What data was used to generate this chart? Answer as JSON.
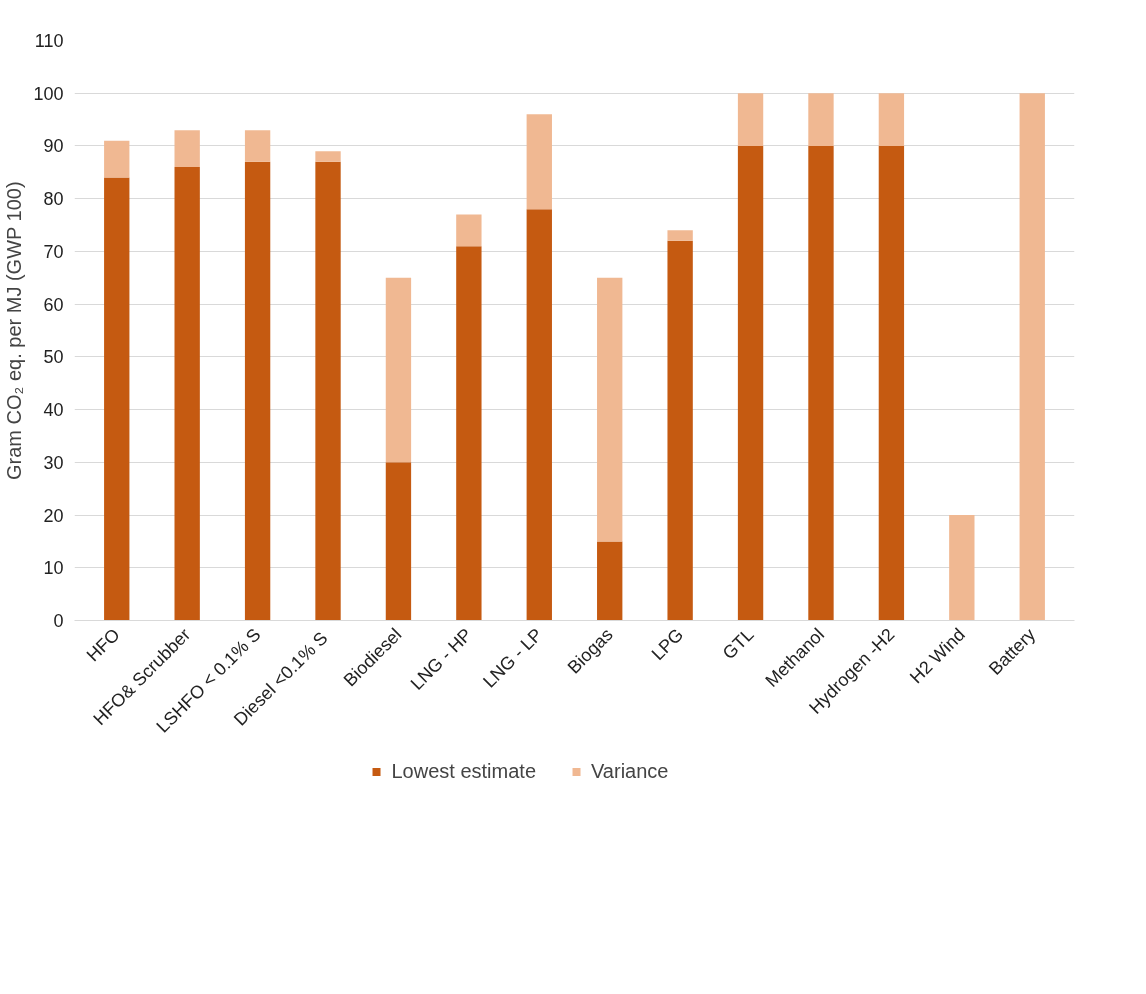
{
  "chart_data": {
    "type": "bar",
    "stacked": true,
    "ylabel": "Gram CO₂ eq. per MJ (GWP 100)",
    "categories": [
      "HFO",
      "HFO& Scrubber",
      "LSHFO < 0.1% S",
      "Diesel  <0.1% S",
      "Biodiesel",
      "LNG - HP",
      "LNG - LP",
      "Biogas",
      "LPG",
      "GTL",
      "Methanol",
      "Hydrogen -H2",
      "H2 Wind",
      "Battery"
    ],
    "series": [
      {
        "name": "Lowest estimate",
        "color": "#c55a11",
        "values": [
          84,
          86,
          87,
          87,
          30,
          71,
          78,
          15,
          72,
          90,
          90,
          90,
          0,
          0
        ]
      },
      {
        "name": "Variance",
        "color": "#f0b892",
        "values": [
          7,
          7,
          6,
          2,
          35,
          6,
          18,
          50,
          2,
          10,
          10,
          10,
          20,
          100
        ]
      }
    ],
    "ylim": [
      0,
      110
    ],
    "yticks": [
      0,
      10,
      20,
      30,
      40,
      50,
      60,
      70,
      80,
      90,
      100,
      110
    ],
    "grid": "y",
    "legend": "bottom"
  }
}
